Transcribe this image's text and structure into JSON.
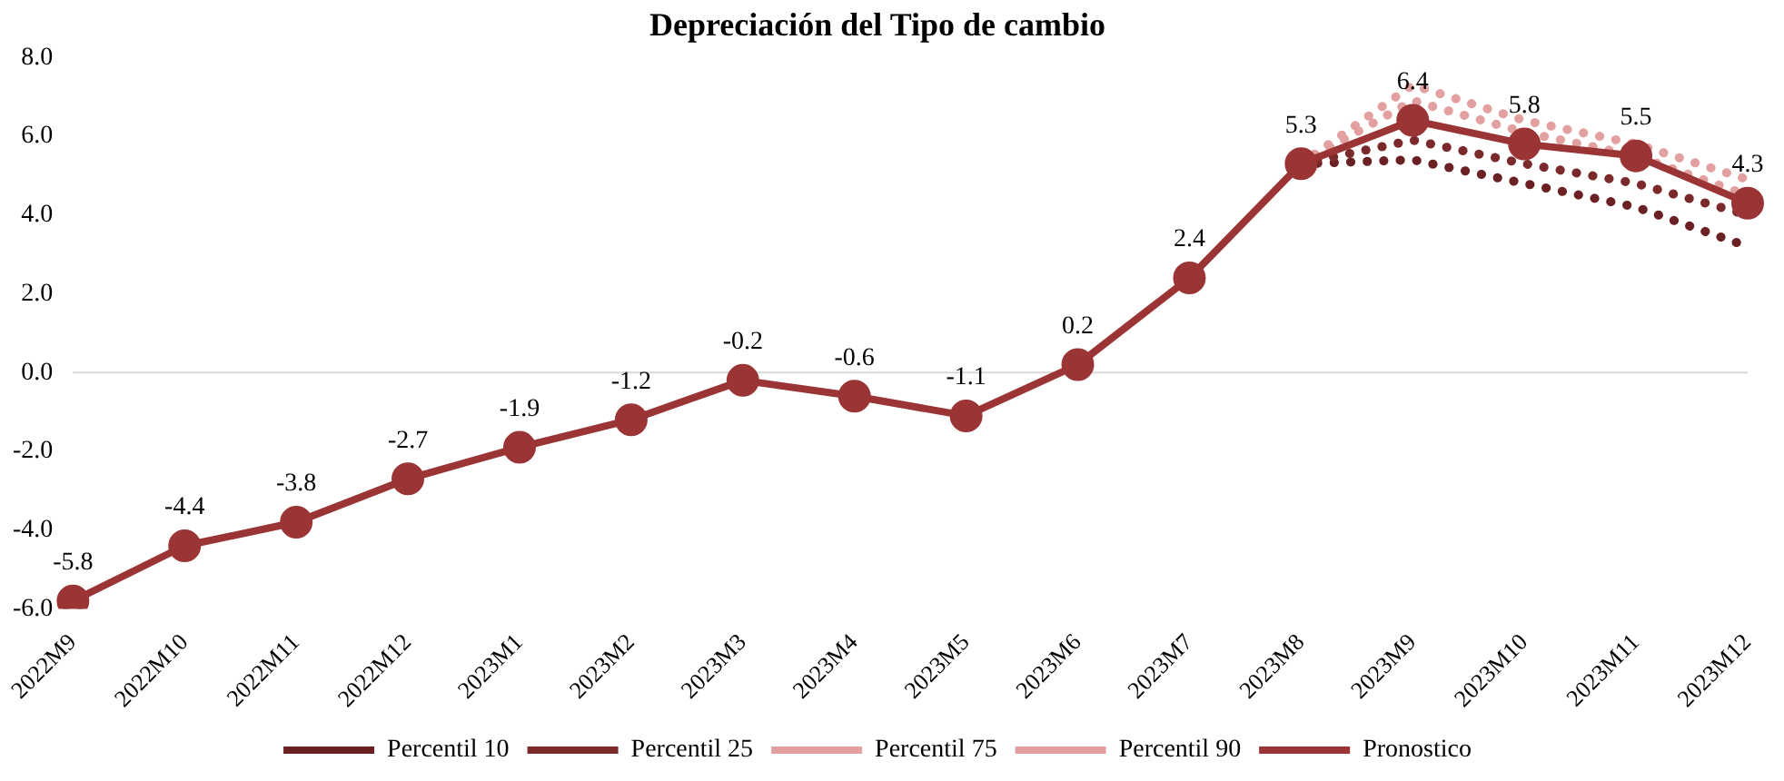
{
  "chart_data": {
    "type": "line",
    "title": "Depreciación del Tipo de cambio",
    "categories": [
      "2022M9",
      "2022M10",
      "2022M11",
      "2022M12",
      "2023M1",
      "2023M2",
      "2023M3",
      "2023M4",
      "2023M5",
      "2023M6",
      "2023M7",
      "2023M8",
      "2023M9",
      "2023M10",
      "2023M11",
      "2023M12"
    ],
    "series": [
      {
        "name": "Percentil 10",
        "color": "#6b2024",
        "line_style": "dotted",
        "marker": "none",
        "values": [
          null,
          null,
          null,
          null,
          null,
          null,
          null,
          null,
          null,
          null,
          null,
          5.3,
          5.4,
          4.8,
          4.2,
          3.2
        ]
      },
      {
        "name": "Percentil 25",
        "color": "#7b2a2c",
        "line_style": "dotted",
        "marker": "none",
        "values": [
          null,
          null,
          null,
          null,
          null,
          null,
          null,
          null,
          null,
          null,
          null,
          5.3,
          5.9,
          5.3,
          4.8,
          4.0
        ]
      },
      {
        "name": "Percentil 75",
        "color": "#e3a0a0",
        "line_style": "dotted",
        "marker": "none",
        "values": [
          null,
          null,
          null,
          null,
          null,
          null,
          null,
          null,
          null,
          null,
          null,
          5.3,
          6.9,
          6.1,
          5.5,
          4.5
        ]
      },
      {
        "name": "Percentil 90",
        "color": "#e3a0a0",
        "line_style": "dotted",
        "marker": "none",
        "values": [
          null,
          null,
          null,
          null,
          null,
          null,
          null,
          null,
          null,
          null,
          null,
          5.3,
          7.3,
          6.4,
          5.8,
          4.9
        ]
      },
      {
        "name": "Pronostico",
        "color": "#9b3535",
        "line_style": "solid",
        "marker": "circle",
        "values": [
          -5.8,
          -4.4,
          -3.8,
          -2.7,
          -1.9,
          -1.2,
          -0.2,
          -0.6,
          -1.1,
          0.2,
          2.4,
          5.3,
          6.4,
          5.8,
          5.5,
          4.3
        ],
        "value_labels": [
          "-5.8",
          "-4.4",
          "-3.8",
          "-2.7",
          "-1.9",
          "-1.2",
          "-0.2",
          "-0.6",
          "-1.1",
          "0.2",
          "2.4",
          "5.3",
          "6.4",
          "5.8",
          "5.5",
          "4.3"
        ]
      }
    ],
    "ylim": [
      -6,
      8
    ],
    "yticks": [
      {
        "value": -6,
        "label": "-6.0"
      },
      {
        "value": -4,
        "label": "-4.0"
      },
      {
        "value": -2,
        "label": "-2.0"
      },
      {
        "value": 0,
        "label": "0.0"
      },
      {
        "value": 2,
        "label": "2.0"
      },
      {
        "value": 4,
        "label": "4.0"
      },
      {
        "value": 6,
        "label": "6.0"
      },
      {
        "value": 8,
        "label": "8.0"
      }
    ],
    "ref_lines": [
      {
        "axis": "y",
        "value": 0,
        "color": "#d9d9d9"
      }
    ],
    "grid": false,
    "legend": "bottom"
  }
}
